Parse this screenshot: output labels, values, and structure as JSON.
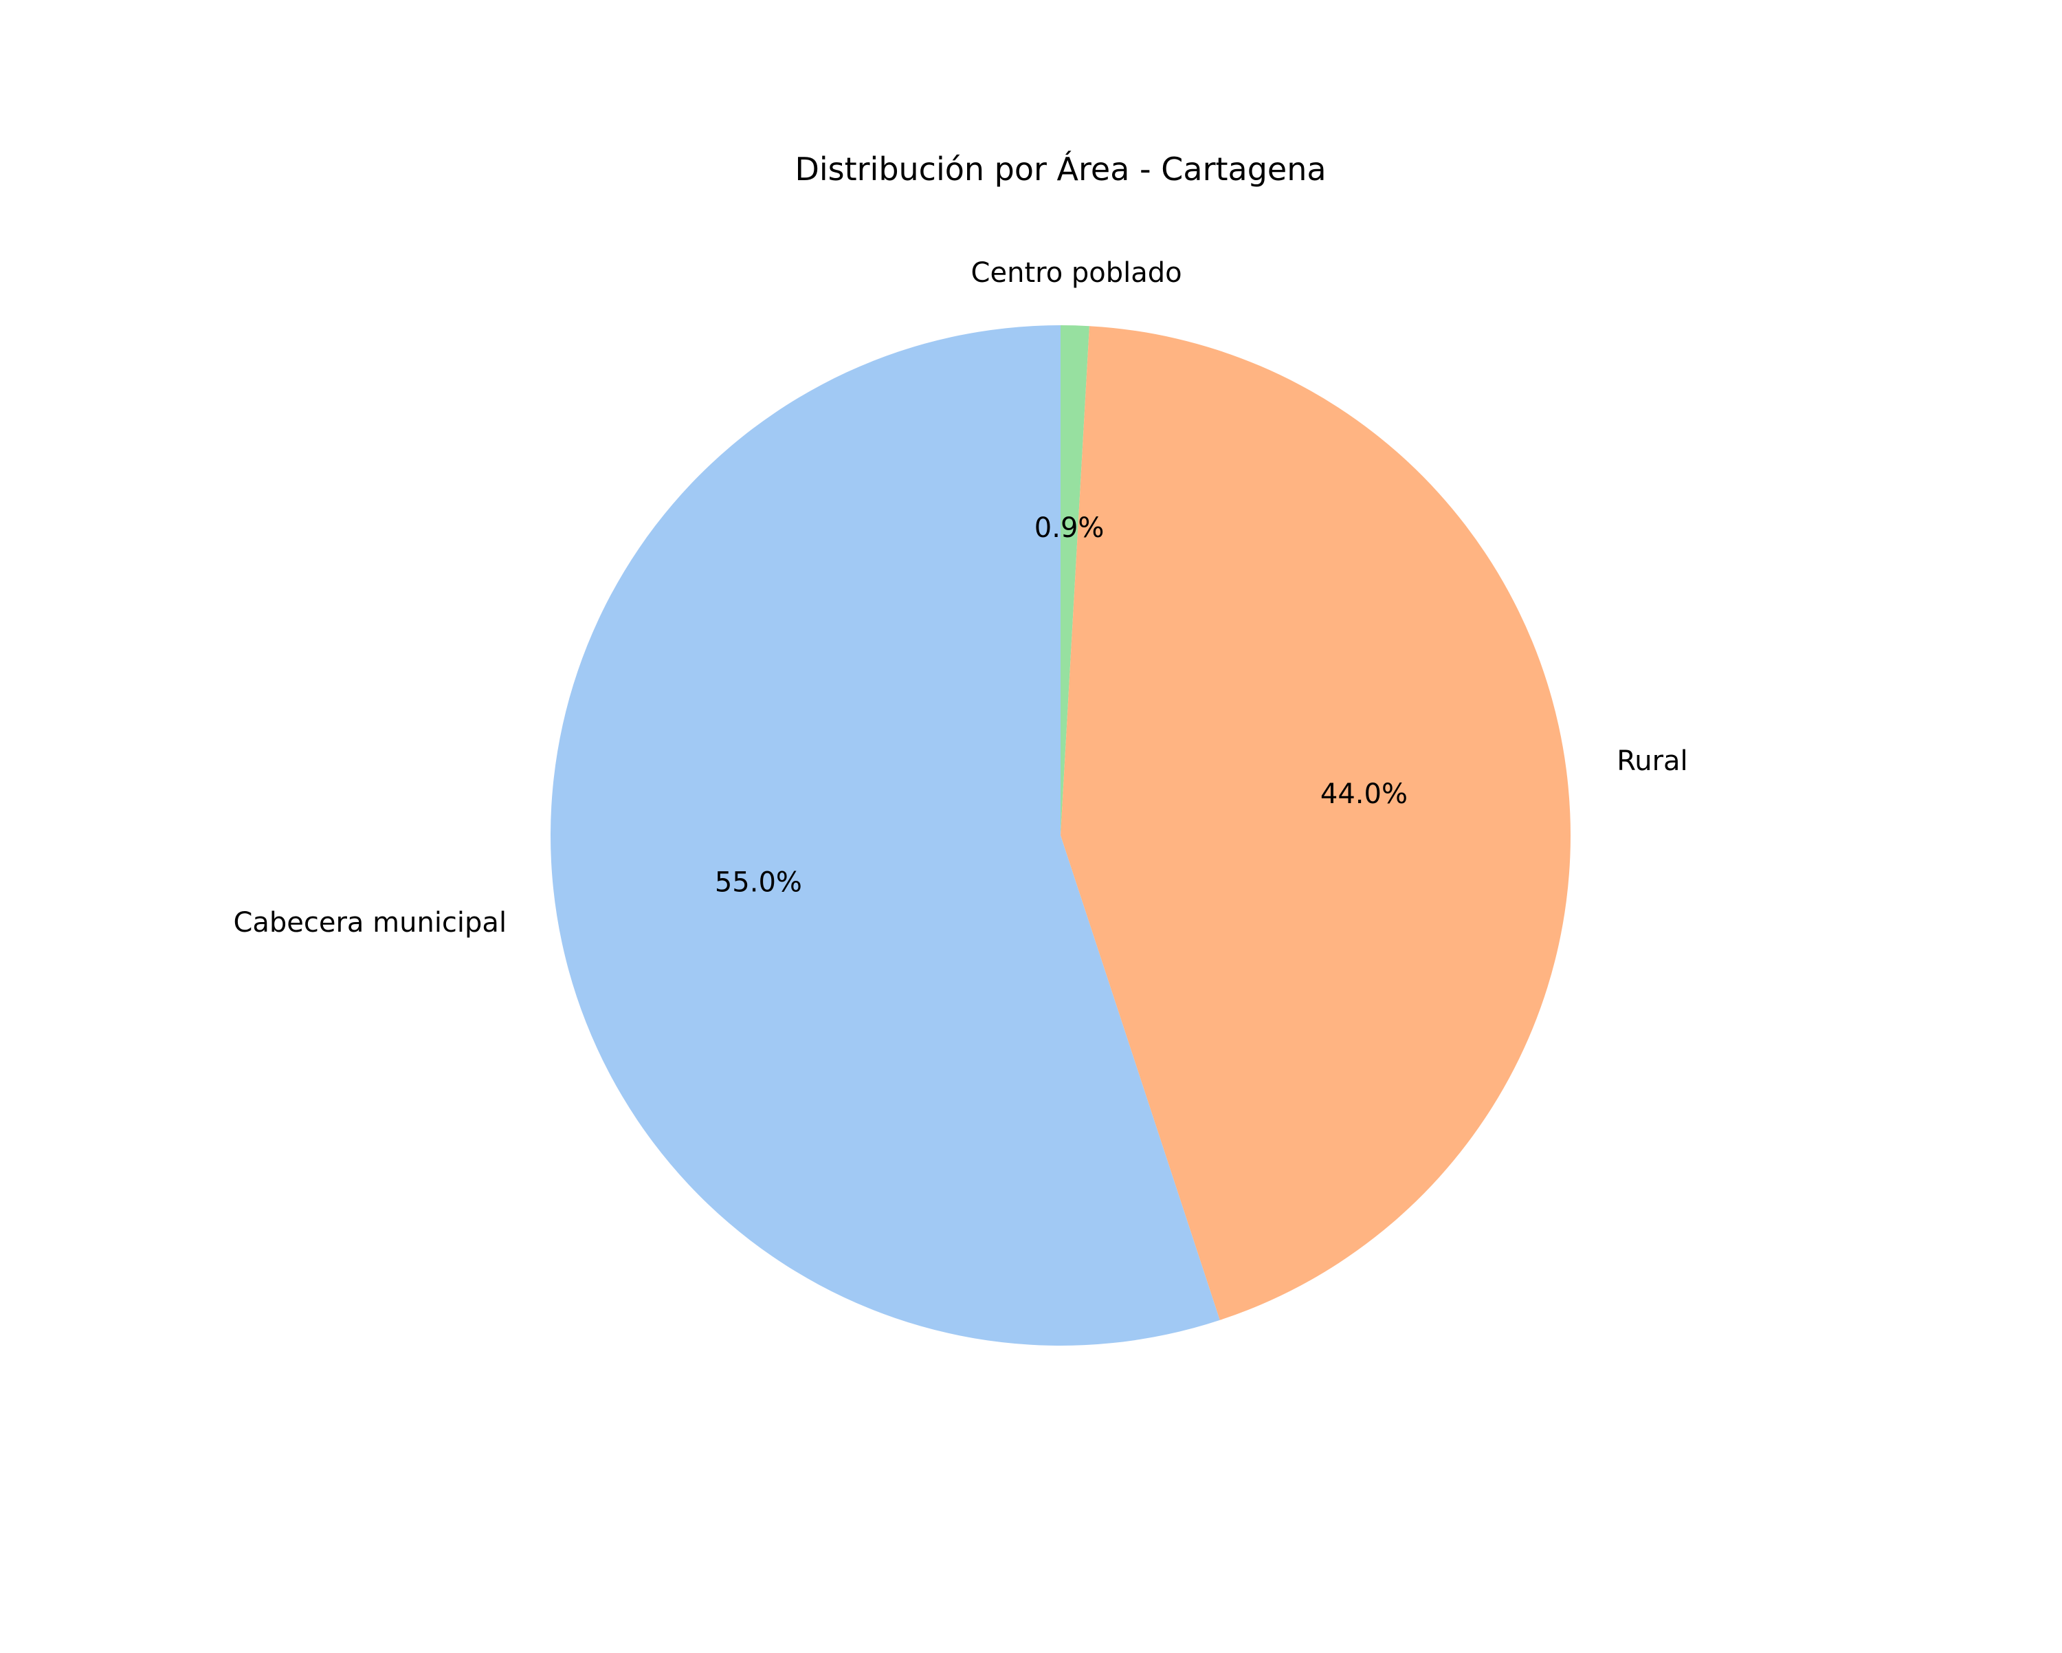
{
  "chart_data": {
    "type": "pie",
    "title": "Distribución por Área - Cartagena",
    "labels": [
      "Centro poblado",
      "Rural",
      "Cabecera municipal"
    ],
    "values": [
      0.9,
      44.0,
      55.0
    ],
    "percent_labels": [
      "0.9%",
      "44.0%",
      "55.0%"
    ],
    "colors": [
      "#97e0a0",
      "#ffb482",
      "#a1c9f4"
    ],
    "start_angle": 90,
    "direction": "clockwise"
  }
}
